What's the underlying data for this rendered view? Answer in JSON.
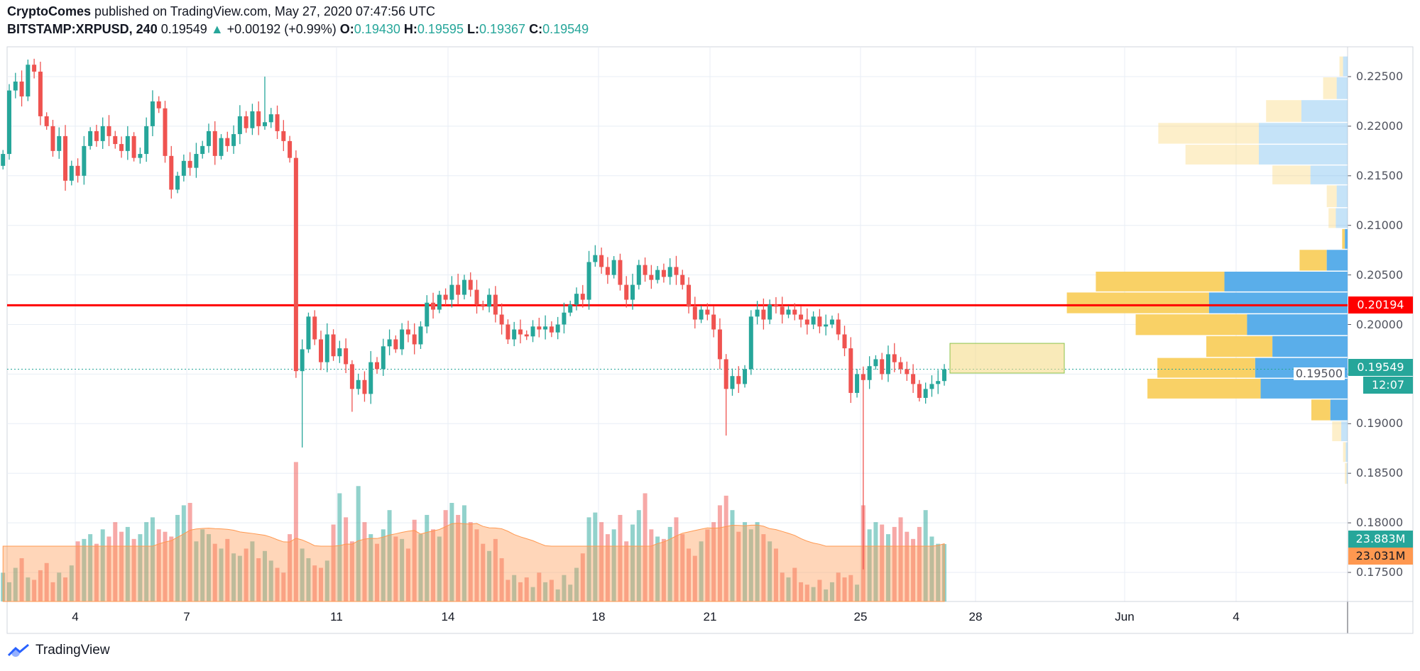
{
  "header": {
    "author": "CryptoComes",
    "published": "published on TradingView.com, May 27, 2020 07:47:56 UTC",
    "symbol": "BITSTAMP:XRPUSD, 240",
    "last": "0.19549",
    "change": "+0.00192 (+0.99%)",
    "o_label": "O:",
    "o": "0.19430",
    "h_label": "H:",
    "h": "0.19595",
    "l_label": "L:",
    "l": "0.19367",
    "c_label": "C:",
    "c": "0.19549"
  },
  "branding": {
    "logo_text": "TradingView"
  },
  "colors": {
    "up": "#26a69a",
    "down": "#ef5350",
    "level_line": "#ff0000",
    "volume_ma": "#ff9850",
    "profile_up": "#5aaeea",
    "profile_down": "#f9d166",
    "rectangle": "#f5dc8a"
  },
  "chart_data": {
    "type": "candlestick",
    "interval": "240",
    "price_axis": {
      "ticks": [
        "0.22500",
        "0.22000",
        "0.21500",
        "0.21000",
        "0.20500",
        "0.20000",
        "0.19500",
        "0.19000",
        "0.18500",
        "0.18000",
        "0.17500"
      ],
      "ylim": [
        0.1735,
        0.2278
      ]
    },
    "date_axis": {
      "ticks": [
        "4",
        "7",
        "11",
        "14",
        "18",
        "21",
        "25",
        "28",
        "Jun",
        "4"
      ]
    },
    "grid": true,
    "first_candle": "2020-05-02 08:00",
    "last_candle": "2020-05-27 04:00",
    "close": [
      0.2172,
      0.2236,
      0.2245,
      0.223,
      0.2262,
      0.2255,
      0.221,
      0.22,
      0.2175,
      0.219,
      0.2145,
      0.216,
      0.215,
      0.218,
      0.2195,
      0.2185,
      0.22,
      0.219,
      0.2182,
      0.2175,
      0.219,
      0.2168,
      0.2172,
      0.22,
      0.2225,
      0.2218,
      0.217,
      0.2136,
      0.215,
      0.2165,
      0.2158,
      0.2172,
      0.218,
      0.2195,
      0.217,
      0.2188,
      0.218,
      0.2192,
      0.221,
      0.2198,
      0.2215,
      0.22,
      0.2204,
      0.2212,
      0.2195,
      0.2185,
      0.2168,
      0.1953,
      0.1975,
      0.2008,
      0.1985,
      0.1962,
      0.199,
      0.1968,
      0.1976,
      0.196,
      0.1935,
      0.1944,
      0.193,
      0.1962,
      0.1955,
      0.1978,
      0.1985,
      0.1975,
      0.1995,
      0.199,
      0.198,
      0.1998,
      0.2022,
      0.2015,
      0.203,
      0.2025,
      0.204,
      0.203,
      0.2045,
      0.2035,
      0.202,
      0.2018,
      0.203,
      0.201,
      0.2,
      0.1985,
      0.1995,
      0.199,
      0.1988,
      0.1998,
      0.1995,
      0.1998,
      0.1992,
      0.2,
      0.2012,
      0.202,
      0.2031,
      0.2025,
      0.2063,
      0.207,
      0.2058,
      0.205,
      0.2065,
      0.204,
      0.2025,
      0.204,
      0.206,
      0.205,
      0.2045,
      0.2055,
      0.2048,
      0.2058,
      0.205,
      0.204,
      0.2018,
      0.2005,
      0.2015,
      0.201,
      0.1995,
      0.1965,
      0.1935,
      0.1948,
      0.194,
      0.1955,
      0.2008,
      0.2015,
      0.2005,
      0.202,
      0.2018,
      0.201,
      0.2015,
      0.201,
      0.2005,
      0.2,
      0.2008,
      0.1998,
      0.2,
      0.2005,
      0.199,
      0.1976,
      0.1931,
      0.195,
      0.1944,
      0.1958,
      0.1965,
      0.195,
      0.197,
      0.1962,
      0.1955,
      0.195,
      0.194,
      0.1926,
      0.1935,
      0.194,
      0.1943,
      0.19549
    ],
    "notable_lows": [
      {
        "index": 48,
        "low": 0.1876
      },
      {
        "index": 56,
        "low": 0.1912
      },
      {
        "index": 116,
        "low": 0.1888
      },
      {
        "index": 138,
        "low": 0.1753
      }
    ],
    "notable_highs": [
      {
        "index": 5,
        "high": 0.2268
      },
      {
        "index": 42,
        "high": 0.225
      },
      {
        "index": 95,
        "high": 0.208
      }
    ],
    "volume_millions": [
      12,
      8,
      14,
      18,
      10,
      9,
      13,
      16,
      8,
      12,
      10,
      15,
      25,
      26,
      28,
      24,
      30,
      27,
      33,
      29,
      31,
      26,
      28,
      33,
      35,
      30,
      29,
      27,
      36,
      40,
      41,
      25,
      30,
      28,
      24,
      22,
      26,
      20,
      19,
      22,
      25,
      18,
      21,
      17,
      14,
      12,
      28,
      58,
      22,
      18,
      15,
      14,
      17,
      32,
      45,
      35,
      25,
      48,
      33,
      28,
      24,
      30,
      38,
      27,
      26,
      22,
      34,
      28,
      36,
      30,
      27,
      38,
      41,
      36,
      40,
      33,
      30,
      24,
      21,
      26,
      18,
      9,
      11,
      8,
      10,
      6,
      12,
      8,
      9,
      5,
      11,
      7,
      14,
      20,
      35,
      37,
      33,
      28,
      30,
      36,
      25,
      32,
      38,
      45,
      30,
      27,
      26,
      31,
      35,
      28,
      22,
      19,
      25,
      30,
      33,
      40,
      44,
      38,
      29,
      33,
      30,
      33,
      28,
      25,
      22,
      12,
      10,
      14,
      8,
      7,
      6,
      9,
      5,
      8,
      12,
      10,
      11,
      7,
      40,
      30,
      33,
      32,
      28,
      31,
      35,
      29,
      26,
      31,
      38,
      27,
      24,
      23.883
    ],
    "horizontal_level": {
      "price": 0.20194,
      "label": "0.20194"
    },
    "last_price_label": "0.19549",
    "countdown": "12:07",
    "volume_label": "23.883M",
    "volume_ma_label": "23.031M",
    "rectangle": {
      "from": "2020-05-27 04:00",
      "to": "2020-05-30 04:00",
      "price_high": 0.1981,
      "price_low": 0.1951
    },
    "volume_profile": [
      {
        "price_low": 0.225,
        "price_high": 0.2271,
        "total": 9,
        "up": 5
      },
      {
        "price_low": 0.2227,
        "price_high": 0.225,
        "total": 27,
        "up": 12
      },
      {
        "price_low": 0.2204,
        "price_high": 0.2227,
        "total": 90,
        "up": 51
      },
      {
        "price_low": 0.2182,
        "price_high": 0.2204,
        "total": 209,
        "up": 98
      },
      {
        "price_low": 0.2161,
        "price_high": 0.2182,
        "total": 179,
        "up": 98
      },
      {
        "price_low": 0.2141,
        "price_high": 0.2161,
        "total": 83,
        "up": 41
      },
      {
        "price_low": 0.2118,
        "price_high": 0.2141,
        "total": 23,
        "up": 12
      },
      {
        "price_low": 0.2097,
        "price_high": 0.2118,
        "total": 21,
        "up": 13
      },
      {
        "price_low": 0.2076,
        "price_high": 0.2097,
        "total": 6,
        "up": 3,
        "value_area": true
      },
      {
        "price_low": 0.2054,
        "price_high": 0.2076,
        "total": 53,
        "up": 23,
        "value_area": true
      },
      {
        "price_low": 0.2033,
        "price_high": 0.2054,
        "total": 278,
        "up": 136,
        "value_area": true
      },
      {
        "price_low": 0.2011,
        "price_high": 0.2033,
        "total": 310,
        "up": 153,
        "value_area": true
      },
      {
        "price_low": 0.1989,
        "price_high": 0.2011,
        "total": 234,
        "up": 111,
        "value_area": true
      },
      {
        "price_low": 0.1967,
        "price_high": 0.1989,
        "total": 156,
        "up": 83,
        "value_area": true
      },
      {
        "price_low": 0.1946,
        "price_high": 0.1967,
        "total": 210,
        "up": 102,
        "value_area": true
      },
      {
        "price_low": 0.1925,
        "price_high": 0.1946,
        "total": 221,
        "up": 96,
        "value_area": true
      },
      {
        "price_low": 0.1903,
        "price_high": 0.1925,
        "total": 40,
        "up": 19,
        "value_area": true
      },
      {
        "price_low": 0.1882,
        "price_high": 0.1903,
        "total": 17,
        "up": 7
      },
      {
        "price_low": 0.1861,
        "price_high": 0.1882,
        "total": 5,
        "up": 2
      },
      {
        "price_low": 0.1839,
        "price_high": 0.1861,
        "total": 3,
        "up": 1
      }
    ]
  }
}
